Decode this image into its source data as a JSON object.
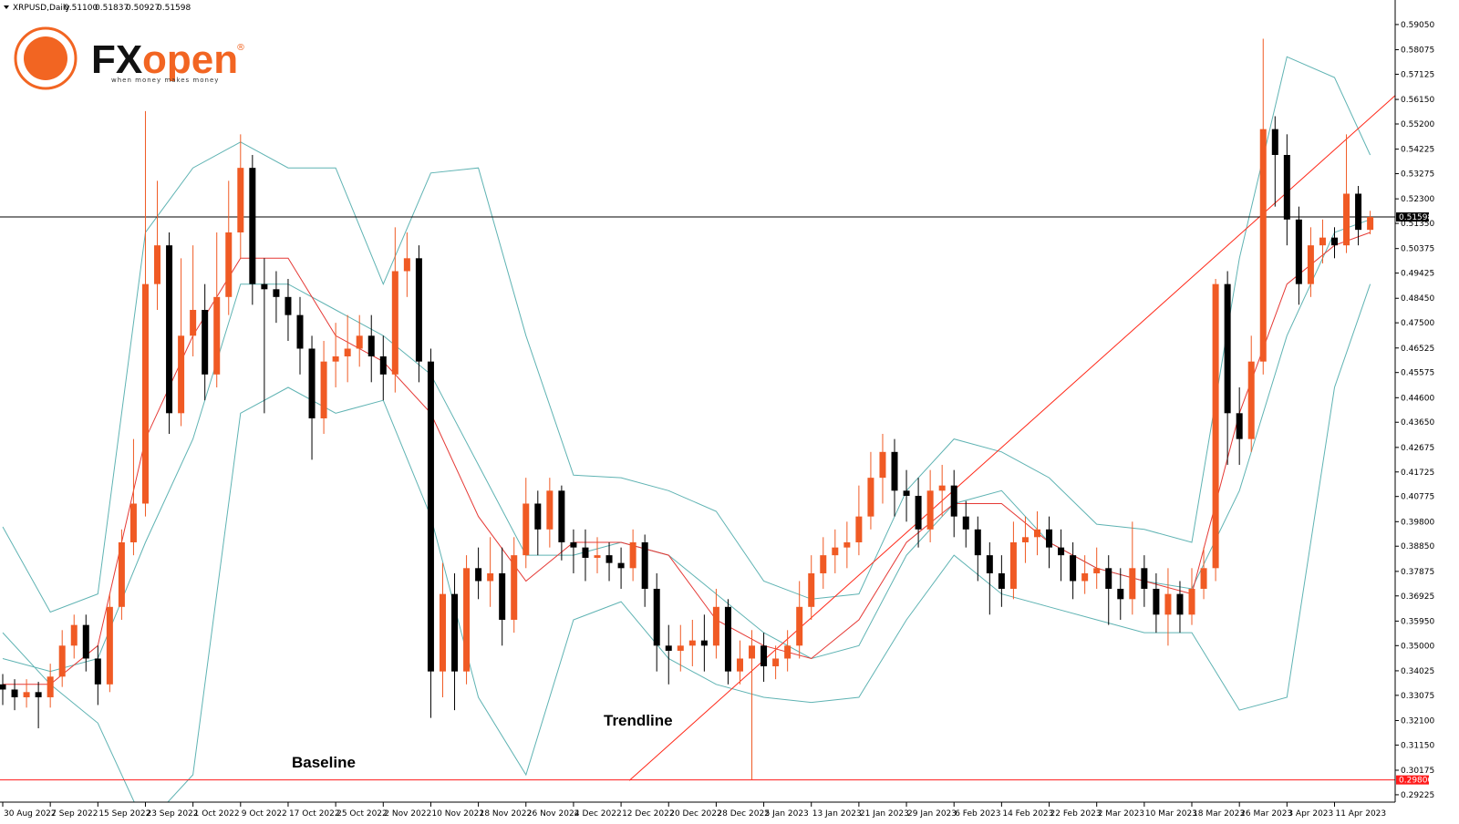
{
  "chart_data": {
    "type": "candlestick",
    "title": "XRPUSD,Daily",
    "header_values": [
      {
        "value": 0.511,
        "label": "0.51100"
      },
      {
        "value": 0.51837,
        "label": "0.51837"
      },
      {
        "value": 0.50927,
        "label": "0.50927"
      },
      {
        "value": 0.51598,
        "label": "0.51598"
      }
    ],
    "logo": {
      "brand_a": "FX",
      "brand_b": "open",
      "mark": "®",
      "tagline": "when money makes money"
    },
    "annotations": [
      "Trendline",
      "Baseline"
    ],
    "up_color": "#f05a24",
    "down_color": "#000000",
    "x": [
      0,
      2,
      4,
      6,
      8,
      10,
      12,
      14,
      16,
      18,
      20,
      22,
      24,
      26,
      28,
      30,
      32,
      34,
      36,
      38,
      40,
      42,
      44,
      46,
      48,
      50,
      52,
      54,
      56,
      58,
      60,
      62,
      64,
      66,
      68,
      70,
      72,
      74,
      76,
      78,
      80,
      82,
      84,
      86,
      88,
      90,
      92,
      94,
      96,
      98,
      100,
      102,
      104,
      106,
      108,
      110,
      112,
      114,
      116,
      118,
      120,
      122,
      124,
      126,
      128,
      130,
      132,
      134,
      136,
      138,
      140,
      142,
      144,
      146,
      148,
      150,
      152,
      154,
      156,
      158,
      160,
      162,
      164,
      166,
      168,
      170,
      172,
      174,
      176,
      178,
      180,
      182,
      184,
      186,
      188,
      190,
      192,
      194,
      196,
      198,
      200,
      202,
      204,
      206,
      208,
      210,
      212,
      214,
      216,
      218,
      220,
      222,
      224,
      226,
      228,
      230
    ],
    "open": [
      0.335,
      0.333,
      0.33,
      0.332,
      0.33,
      0.338,
      0.35,
      0.358,
      0.345,
      0.335,
      0.365,
      0.39,
      0.405,
      0.49,
      0.505,
      0.44,
      0.47,
      0.48,
      0.455,
      0.485,
      0.51,
      0.535,
      0.49,
      0.488,
      0.485,
      0.478,
      0.465,
      0.438,
      0.46,
      0.462,
      0.465,
      0.47,
      0.462,
      0.455,
      0.495,
      0.5,
      0.46,
      0.34,
      0.37,
      0.34,
      0.38,
      0.375,
      0.378,
      0.36,
      0.385,
      0.405,
      0.395,
      0.41,
      0.39,
      0.388,
      0.384,
      0.385,
      0.382,
      0.38,
      0.39,
      0.372,
      0.35,
      0.348,
      0.35,
      0.352,
      0.35,
      0.365,
      0.34,
      0.345,
      0.35,
      0.342,
      0.345,
      0.35,
      0.365,
      0.378,
      0.385,
      0.388,
      0.39,
      0.4,
      0.415,
      0.425,
      0.41,
      0.408,
      0.395,
      0.41,
      0.412,
      0.4,
      0.395,
      0.385,
      0.378,
      0.372,
      0.39,
      0.392,
      0.395,
      0.388,
      0.385,
      0.375,
      0.378,
      0.38,
      0.372,
      0.368,
      0.38,
      0.372,
      0.362,
      0.37,
      0.362,
      0.372,
      0.38,
      0.49,
      0.44,
      0.43,
      0.46,
      0.55,
      0.54,
      0.515,
      0.49,
      0.505,
      0.508,
      0.505,
      0.525,
      0.511
    ],
    "high": [
      0.339,
      0.337,
      0.337,
      0.336,
      0.343,
      0.356,
      0.362,
      0.362,
      0.35,
      0.37,
      0.395,
      0.43,
      0.557,
      0.53,
      0.51,
      0.5,
      0.505,
      0.49,
      0.51,
      0.53,
      0.548,
      0.54,
      0.5,
      0.495,
      0.492,
      0.485,
      0.47,
      0.468,
      0.475,
      0.478,
      0.478,
      0.478,
      0.47,
      0.512,
      0.51,
      0.505,
      0.465,
      0.382,
      0.378,
      0.385,
      0.388,
      0.392,
      0.388,
      0.392,
      0.415,
      0.41,
      0.415,
      0.412,
      0.395,
      0.395,
      0.392,
      0.39,
      0.388,
      0.395,
      0.393,
      0.378,
      0.358,
      0.358,
      0.36,
      0.362,
      0.372,
      0.368,
      0.352,
      0.356,
      0.355,
      0.35,
      0.356,
      0.375,
      0.385,
      0.392,
      0.395,
      0.398,
      0.412,
      0.425,
      0.432,
      0.43,
      0.418,
      0.415,
      0.418,
      0.42,
      0.418,
      0.406,
      0.4,
      0.39,
      0.385,
      0.398,
      0.4,
      0.402,
      0.4,
      0.395,
      0.39,
      0.385,
      0.388,
      0.385,
      0.38,
      0.398,
      0.385,
      0.378,
      0.38,
      0.375,
      0.38,
      0.388,
      0.492,
      0.495,
      0.45,
      0.47,
      0.585,
      0.555,
      0.548,
      0.52,
      0.512,
      0.515,
      0.512,
      0.548,
      0.528,
      0.51837
    ],
    "low": [
      0.327,
      0.325,
      0.326,
      0.318,
      0.326,
      0.334,
      0.345,
      0.34,
      0.327,
      0.332,
      0.36,
      0.385,
      0.4,
      0.48,
      0.432,
      0.435,
      0.462,
      0.445,
      0.45,
      0.478,
      0.5,
      0.482,
      0.44,
      0.475,
      0.468,
      0.455,
      0.422,
      0.432,
      0.45,
      0.452,
      0.458,
      0.452,
      0.445,
      0.448,
      0.485,
      0.452,
      0.322,
      0.33,
      0.325,
      0.335,
      0.368,
      0.365,
      0.35,
      0.355,
      0.38,
      0.385,
      0.388,
      0.383,
      0.378,
      0.375,
      0.378,
      0.375,
      0.372,
      0.375,
      0.365,
      0.34,
      0.335,
      0.34,
      0.342,
      0.34,
      0.345,
      0.335,
      0.335,
      0.298,
      0.336,
      0.337,
      0.34,
      0.345,
      0.36,
      0.372,
      0.378,
      0.38,
      0.385,
      0.395,
      0.405,
      0.4,
      0.398,
      0.388,
      0.39,
      0.4,
      0.392,
      0.388,
      0.375,
      0.362,
      0.365,
      0.368,
      0.382,
      0.385,
      0.38,
      0.375,
      0.368,
      0.37,
      0.372,
      0.358,
      0.36,
      0.362,
      0.365,
      0.355,
      0.35,
      0.355,
      0.358,
      0.368,
      0.375,
      0.42,
      0.42,
      0.425,
      0.455,
      0.52,
      0.505,
      0.482,
      0.485,
      0.498,
      0.5,
      0.502,
      0.505,
      0.50927
    ],
    "close": [
      0.333,
      0.33,
      0.332,
      0.33,
      0.338,
      0.35,
      0.358,
      0.345,
      0.335,
      0.365,
      0.39,
      0.405,
      0.49,
      0.505,
      0.44,
      0.47,
      0.48,
      0.455,
      0.485,
      0.51,
      0.535,
      0.49,
      0.488,
      0.485,
      0.478,
      0.465,
      0.438,
      0.46,
      0.462,
      0.465,
      0.47,
      0.462,
      0.455,
      0.495,
      0.5,
      0.46,
      0.34,
      0.37,
      0.34,
      0.38,
      0.375,
      0.378,
      0.36,
      0.385,
      0.405,
      0.395,
      0.41,
      0.39,
      0.388,
      0.384,
      0.385,
      0.382,
      0.38,
      0.39,
      0.372,
      0.35,
      0.348,
      0.35,
      0.352,
      0.35,
      0.365,
      0.34,
      0.345,
      0.35,
      0.342,
      0.345,
      0.35,
      0.365,
      0.378,
      0.385,
      0.388,
      0.39,
      0.4,
      0.415,
      0.425,
      0.41,
      0.408,
      0.395,
      0.41,
      0.412,
      0.4,
      0.395,
      0.385,
      0.378,
      0.372,
      0.39,
      0.392,
      0.395,
      0.388,
      0.385,
      0.375,
      0.378,
      0.38,
      0.372,
      0.368,
      0.38,
      0.372,
      0.362,
      0.37,
      0.362,
      0.372,
      0.38,
      0.49,
      0.44,
      0.43,
      0.46,
      0.55,
      0.54,
      0.515,
      0.49,
      0.505,
      0.508,
      0.505,
      0.525,
      0.511,
      0.51598
    ],
    "line_x": [
      0,
      8,
      16,
      24,
      32,
      40,
      48,
      56,
      64,
      72,
      80,
      88,
      96,
      104,
      112,
      120,
      128,
      136,
      144,
      152,
      160,
      168,
      176,
      184,
      192,
      200,
      208,
      216,
      224,
      230
    ],
    "lines": [
      {
        "color": "#5fb3b3",
        "values": [
          0.396,
          0.363,
          0.37,
          0.51,
          0.535,
          0.545,
          0.535,
          0.535,
          0.49,
          0.533,
          0.535,
          0.47,
          0.416,
          0.415,
          0.41,
          0.402,
          0.375,
          0.368,
          0.37,
          0.41,
          0.43,
          0.425,
          0.415,
          0.397,
          0.395,
          0.39,
          0.5,
          0.578,
          0.57,
          0.54
        ]
      },
      {
        "color": "#5fb3b3",
        "values": [
          0.345,
          0.34,
          0.345,
          0.39,
          0.43,
          0.49,
          0.49,
          0.48,
          0.47,
          0.455,
          0.42,
          0.385,
          0.385,
          0.39,
          0.385,
          0.37,
          0.355,
          0.345,
          0.35,
          0.385,
          0.405,
          0.41,
          0.39,
          0.38,
          0.375,
          0.372,
          0.41,
          0.47,
          0.51,
          0.515
        ]
      },
      {
        "color": "#5fb3b3",
        "values": [
          0.355,
          0.335,
          0.32,
          0.28,
          0.3,
          0.44,
          0.45,
          0.44,
          0.445,
          0.4,
          0.33,
          0.3,
          0.36,
          0.367,
          0.345,
          0.335,
          0.33,
          0.328,
          0.33,
          0.36,
          0.385,
          0.37,
          0.365,
          0.36,
          0.355,
          0.355,
          0.325,
          0.33,
          0.45,
          0.49
        ]
      },
      {
        "color": "#e53935",
        "values": [
          0.335,
          0.335,
          0.35,
          0.43,
          0.47,
          0.5,
          0.5,
          0.47,
          0.46,
          0.44,
          0.4,
          0.375,
          0.39,
          0.39,
          0.385,
          0.36,
          0.35,
          0.345,
          0.36,
          0.39,
          0.405,
          0.405,
          0.39,
          0.38,
          0.375,
          0.37,
          0.44,
          0.49,
          0.505,
          0.51
        ]
      }
    ],
    "trendline": {
      "color": "#ff2a1a",
      "x": [
        105.4,
        234.2
      ],
      "values": [
        0.2978,
        0.563
      ]
    },
    "price_lines": [
      {
        "value": 0.51598,
        "color": "#000000"
      },
      {
        "value": 0.298,
        "label": "0.29800",
        "color": "#ff1a1a"
      }
    ],
    "xlim": [
      -0.46,
      234.2
    ],
    "ylim": [
      0.2894,
      0.6
    ],
    "xticks": [
      {
        "value": 0,
        "label": "30 Aug 2022"
      },
      {
        "value": 8,
        "label": "7 Sep 2022"
      },
      {
        "value": 16,
        "label": "15 Sep 2022"
      },
      {
        "value": 24,
        "label": "23 Sep 2022"
      },
      {
        "value": 32,
        "label": "1 Oct 2022"
      },
      {
        "value": 40,
        "label": "9 Oct 2022"
      },
      {
        "value": 48,
        "label": "17 Oct 2022"
      },
      {
        "value": 56,
        "label": "25 Oct 2022"
      },
      {
        "value": 64,
        "label": "2 Nov 2022"
      },
      {
        "value": 72,
        "label": "10 Nov 2022"
      },
      {
        "value": 80,
        "label": "18 Nov 2022"
      },
      {
        "value": 88,
        "label": "26 Nov 2022"
      },
      {
        "value": 96,
        "label": "4 Dec 2022"
      },
      {
        "value": 104,
        "label": "12 Dec 2022"
      },
      {
        "value": 112,
        "label": "20 Dec 2022"
      },
      {
        "value": 120,
        "label": "28 Dec 2022"
      },
      {
        "value": 128,
        "label": "5 Jan 2023"
      },
      {
        "value": 136,
        "label": "13 Jan 2023"
      },
      {
        "value": 144,
        "label": "21 Jan 2023"
      },
      {
        "value": 152,
        "label": "29 Jan 2023"
      },
      {
        "value": 160,
        "label": "6 Feb 2023"
      },
      {
        "value": 168,
        "label": "14 Feb 2023"
      },
      {
        "value": 176,
        "label": "22 Feb 2023"
      },
      {
        "value": 184,
        "label": "2 Mar 2023"
      },
      {
        "value": 192,
        "label": "10 Mar 2023"
      },
      {
        "value": 200,
        "label": "18 Mar 2023"
      },
      {
        "value": 208,
        "label": "26 Mar 2023"
      },
      {
        "value": 216,
        "label": "3 Apr 2023"
      },
      {
        "value": 224,
        "label": "11 Apr 2023"
      }
    ],
    "yticks": [
      {
        "value": 0.5905,
        "label": "0.59050"
      },
      {
        "value": 0.58075,
        "label": "0.58075"
      },
      {
        "value": 0.57125,
        "label": "0.57125"
      },
      {
        "value": 0.5615,
        "label": "0.56150"
      },
      {
        "value": 0.552,
        "label": "0.55200"
      },
      {
        "value": 0.54225,
        "label": "0.54225"
      },
      {
        "value": 0.53275,
        "label": "0.53275"
      },
      {
        "value": 0.523,
        "label": "0.52300"
      },
      {
        "value": 0.5135,
        "label": "0.51350"
      },
      {
        "value": 0.50375,
        "label": "0.50375"
      },
      {
        "value": 0.49425,
        "label": "0.49425"
      },
      {
        "value": 0.4845,
        "label": "0.48450"
      },
      {
        "value": 0.475,
        "label": "0.47500"
      },
      {
        "value": 0.46525,
        "label": "0.46525"
      },
      {
        "value": 0.45575,
        "label": "0.45575"
      },
      {
        "value": 0.446,
        "label": "0.44600"
      },
      {
        "value": 0.4365,
        "label": "0.43650"
      },
      {
        "value": 0.42675,
        "label": "0.42675"
      },
      {
        "value": 0.41725,
        "label": "0.41725"
      },
      {
        "value": 0.40775,
        "label": "0.40775"
      },
      {
        "value": 0.398,
        "label": "0.39800"
      },
      {
        "value": 0.3885,
        "label": "0.38850"
      },
      {
        "value": 0.37875,
        "label": "0.37875"
      },
      {
        "value": 0.36925,
        "label": "0.36925"
      },
      {
        "value": 0.3595,
        "label": "0.35950"
      },
      {
        "value": 0.35,
        "label": "0.35000"
      },
      {
        "value": 0.34025,
        "label": "0.34025"
      },
      {
        "value": 0.33075,
        "label": "0.33075"
      },
      {
        "value": 0.321,
        "label": "0.32100"
      },
      {
        "value": 0.3115,
        "label": "0.31150"
      },
      {
        "value": 0.30175,
        "label": "0.30175"
      },
      {
        "value": 0.29225,
        "label": "0.29225"
      }
    ]
  }
}
